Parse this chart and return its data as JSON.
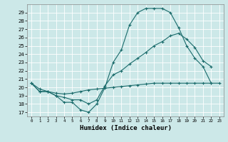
{
  "title": "",
  "xlabel": "Humidex (Indice chaleur)",
  "bg_color": "#cce8e8",
  "grid_color": "#aacccc",
  "line_color": "#1a6b6b",
  "xlim": [
    -0.5,
    23.5
  ],
  "ylim": [
    16.5,
    30.0
  ],
  "yticks": [
    17,
    18,
    19,
    20,
    21,
    22,
    23,
    24,
    25,
    26,
    27,
    28,
    29
  ],
  "xticks": [
    0,
    1,
    2,
    3,
    4,
    5,
    6,
    7,
    8,
    9,
    10,
    11,
    12,
    13,
    14,
    15,
    16,
    17,
    18,
    19,
    20,
    21,
    22,
    23
  ],
  "series1_x": [
    0,
    1,
    2,
    3,
    4,
    5,
    6,
    7,
    8,
    9,
    10,
    11,
    12,
    13,
    14,
    15,
    16,
    17,
    18,
    19,
    20,
    21,
    22
  ],
  "series1_y": [
    20.5,
    19.5,
    19.5,
    19.0,
    18.2,
    18.2,
    17.3,
    17.0,
    18.0,
    20.0,
    23.0,
    24.5,
    27.5,
    29.0,
    29.5,
    29.5,
    29.5,
    29.0,
    27.2,
    25.0,
    23.5,
    22.5,
    20.5
  ],
  "series2_x": [
    0,
    1,
    2,
    3,
    4,
    5,
    6,
    7,
    8,
    9,
    10,
    11,
    12,
    13,
    14,
    15,
    16,
    17,
    18,
    19,
    20,
    21,
    22
  ],
  "series2_y": [
    20.5,
    19.5,
    19.5,
    19.0,
    18.8,
    18.5,
    18.5,
    18.0,
    18.5,
    20.2,
    21.5,
    22.0,
    22.8,
    23.5,
    24.2,
    25.0,
    25.5,
    26.2,
    26.5,
    25.8,
    24.8,
    23.2,
    22.5
  ],
  "series3_x": [
    0,
    1,
    2,
    3,
    4,
    5,
    6,
    7,
    8,
    9,
    10,
    11,
    12,
    13,
    14,
    15,
    16,
    17,
    18,
    19,
    20,
    21,
    22,
    23
  ],
  "series3_y": [
    20.5,
    19.8,
    19.5,
    19.3,
    19.2,
    19.3,
    19.5,
    19.7,
    19.8,
    19.9,
    20.0,
    20.1,
    20.2,
    20.3,
    20.4,
    20.5,
    20.5,
    20.5,
    20.5,
    20.5,
    20.5,
    20.5,
    20.5,
    20.5
  ]
}
